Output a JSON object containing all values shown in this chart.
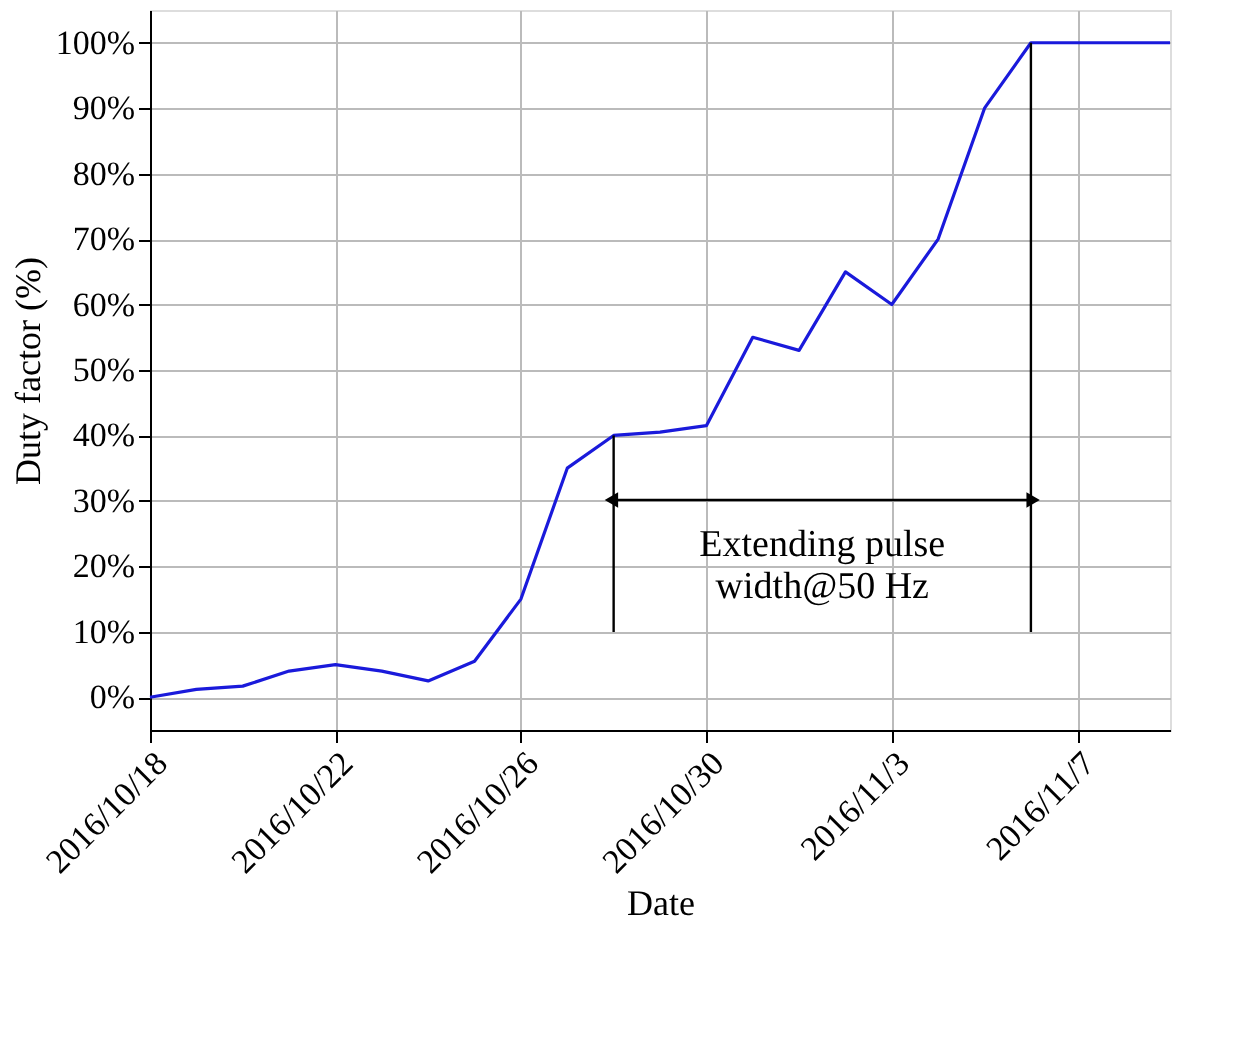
{
  "chart_data": {
    "type": "line",
    "xlabel": "Date",
    "ylabel": "Duty factor (%)",
    "x": [
      "2016-10-18",
      "2016-10-19",
      "2016-10-20",
      "2016-10-21",
      "2016-10-22",
      "2016-10-23",
      "2016-10-24",
      "2016-10-25",
      "2016-10-26",
      "2016-10-27",
      "2016-10-28",
      "2016-10-29",
      "2016-10-30",
      "2016-10-31",
      "2016-11-01",
      "2016-11-02",
      "2016-11-03",
      "2016-11-04",
      "2016-11-05",
      "2016-11-06",
      "2016-11-07",
      "2016-11-08",
      "2016-11-09"
    ],
    "series": [
      {
        "color": "#1a1adb",
        "values": [
          0,
          1.2,
          1.7,
          4,
          5,
          4,
          2.5,
          5.5,
          15,
          35,
          40,
          40.5,
          41.5,
          55,
          53,
          65,
          60,
          70,
          90,
          100,
          100,
          100,
          100
        ]
      }
    ],
    "xlim": [
      "2016-10-18",
      "2016-11-09"
    ],
    "xticks": [
      {
        "value": "2016-10-18",
        "label": "2016/10/18"
      },
      {
        "value": "2016-10-22",
        "label": "2016/10/22"
      },
      {
        "value": "2016-10-26",
        "label": "2016/10/26"
      },
      {
        "value": "2016-10-30",
        "label": "2016/10/30"
      },
      {
        "value": "2016-11-03",
        "label": "2016/11/3"
      },
      {
        "value": "2016-11-07",
        "label": "2016/11/7"
      }
    ],
    "ylim": [
      -5,
      105
    ],
    "yticks": [
      {
        "value": 0,
        "label": "0%"
      },
      {
        "value": 10,
        "label": "10%"
      },
      {
        "value": 20,
        "label": "20%"
      },
      {
        "value": 30,
        "label": "30%"
      },
      {
        "value": 40,
        "label": "40%"
      },
      {
        "value": 50,
        "label": "50%"
      },
      {
        "value": 60,
        "label": "60%"
      },
      {
        "value": 70,
        "label": "70%"
      },
      {
        "value": 80,
        "label": "80%"
      },
      {
        "value": 90,
        "label": "90%"
      },
      {
        "value": 100,
        "label": "100%"
      }
    ],
    "ref_lines": [
      {
        "axis": "x",
        "value": "2016-10-28",
        "color": "#000000"
      },
      {
        "axis": "x",
        "value": "2016-11-06",
        "color": "#000000"
      }
    ],
    "annotations": [
      "Extending pulse\nwidth@50 Hz"
    ],
    "grid": true,
    "marker": "none",
    "line_style": "solid"
  }
}
